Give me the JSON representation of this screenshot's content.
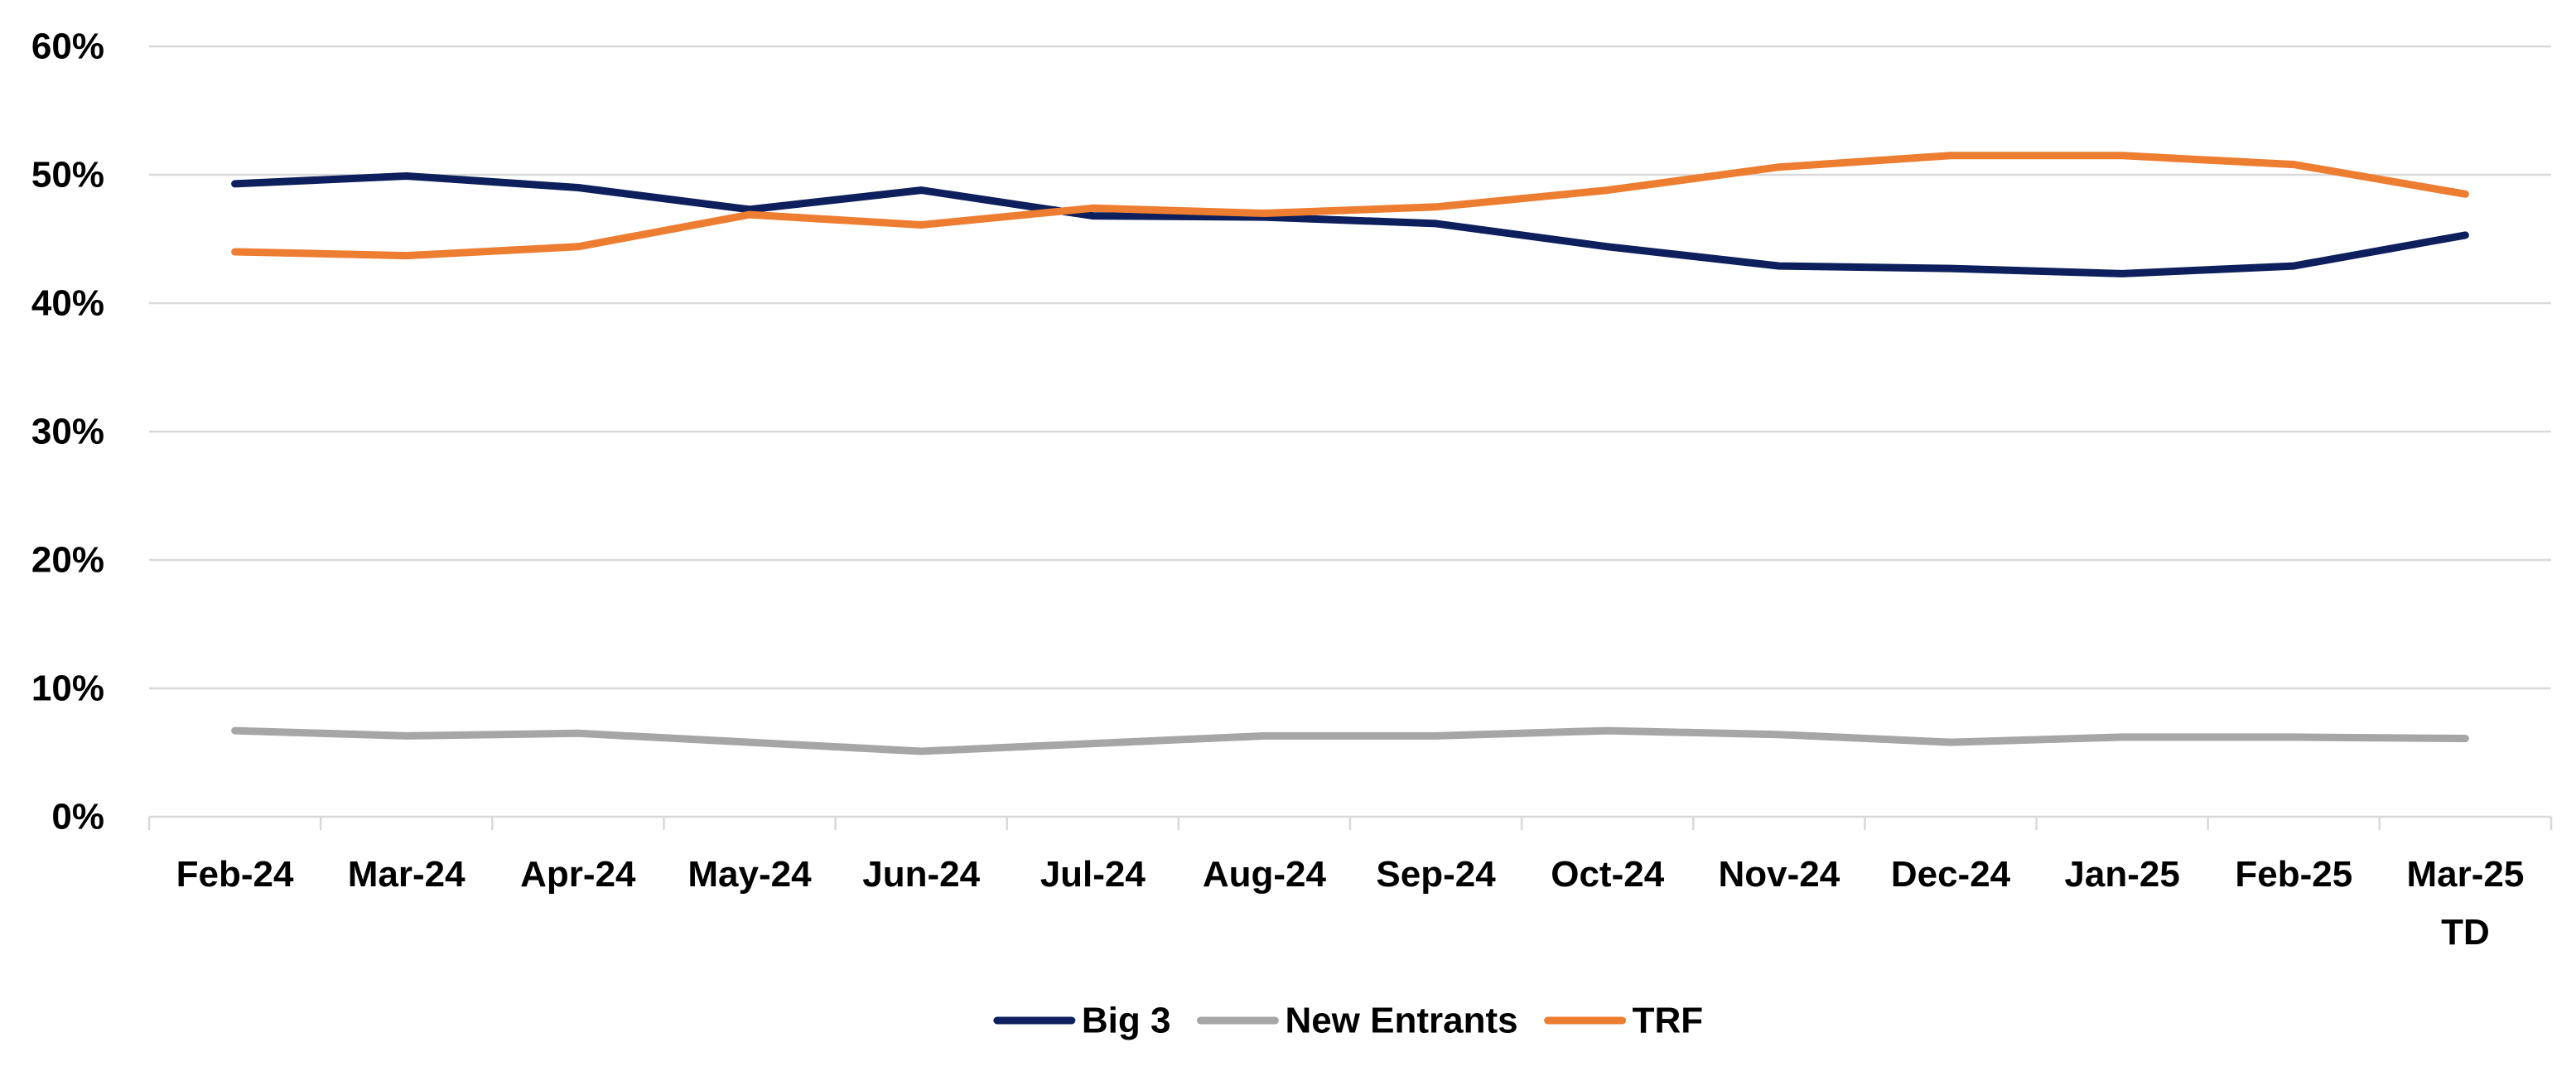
{
  "chart_data": {
    "type": "line",
    "categories": [
      [
        "Feb-24"
      ],
      [
        "Mar-24"
      ],
      [
        "Apr-24"
      ],
      [
        "May-24"
      ],
      [
        "Jun-24"
      ],
      [
        "Jul-24"
      ],
      [
        "Aug-24"
      ],
      [
        "Sep-24"
      ],
      [
        "Oct-24"
      ],
      [
        "Nov-24"
      ],
      [
        "Dec-24"
      ],
      [
        "Jan-25"
      ],
      [
        "Feb-25"
      ],
      [
        "Mar-25",
        "TD"
      ]
    ],
    "ylim": [
      0,
      60
    ],
    "yticks": [
      0,
      10,
      20,
      30,
      40,
      50,
      60
    ],
    "ytick_labels": [
      "0%",
      "10%",
      "20%",
      "30%",
      "40%",
      "50%",
      "60%"
    ],
    "grid": true,
    "legend_position": "bottom-center",
    "series": [
      {
        "name": "Big 3",
        "color": "#0d1f5c",
        "values": [
          49.3,
          49.9,
          49.0,
          47.3,
          48.8,
          46.8,
          46.7,
          46.2,
          44.4,
          42.9,
          42.7,
          42.3,
          42.9,
          45.3
        ]
      },
      {
        "name": "New Entrants",
        "color": "#a6a6a6",
        "values": [
          6.7,
          6.3,
          6.5,
          5.8,
          5.1,
          5.7,
          6.3,
          6.3,
          6.7,
          6.4,
          5.8,
          6.2,
          6.2,
          6.1
        ]
      },
      {
        "name": "TRF",
        "color": "#ed7d31",
        "values": [
          44.0,
          43.7,
          44.4,
          46.9,
          46.1,
          47.4,
          47.0,
          47.5,
          48.8,
          50.6,
          51.5,
          51.5,
          50.8,
          48.5
        ]
      }
    ]
  }
}
